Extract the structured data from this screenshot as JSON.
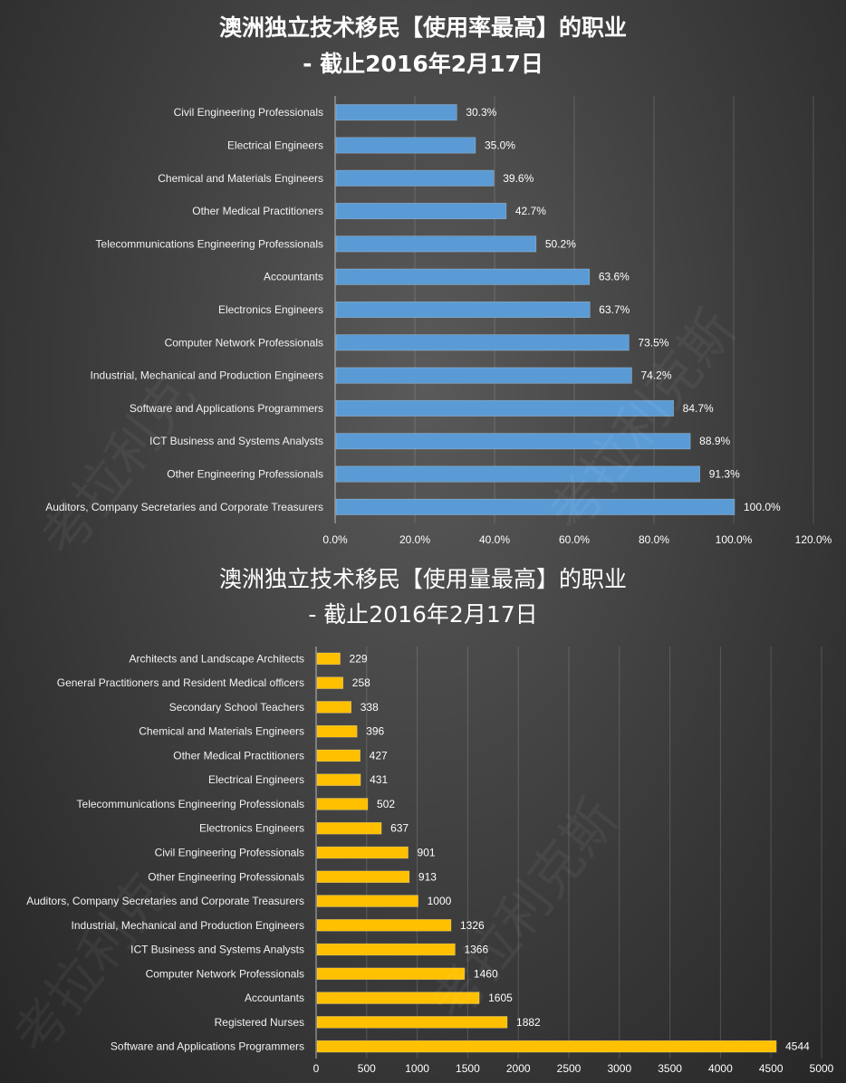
{
  "chart_data": [
    {
      "type": "bar",
      "orientation": "horizontal",
      "title": "澳洲独立技术移民【使用率最高】的职业",
      "subtitle": "- 截止2016年2月17日",
      "categories": [
        "Civil Engineering Professionals",
        "Electrical Engineers",
        "Chemical and Materials Engineers",
        "Other Medical Practitioners",
        "Telecommunications Engineering Professionals",
        "Accountants",
        "Electronics Engineers",
        "Computer Network Professionals",
        "Industrial, Mechanical and Production Engineers",
        "Software and Applications Programmers",
        "ICT Business and Systems Analysts",
        "Other Engineering Professionals",
        "Auditors, Company Secretaries and Corporate Treasurers"
      ],
      "values": [
        30.3,
        35.0,
        39.6,
        42.7,
        50.2,
        63.6,
        63.7,
        73.5,
        74.2,
        84.7,
        88.9,
        91.3,
        100.0
      ],
      "value_labels": [
        "30.3%",
        "35.0%",
        "39.6%",
        "42.7%",
        "50.2%",
        "63.6%",
        "63.7%",
        "73.5%",
        "74.2%",
        "84.7%",
        "88.9%",
        "91.3%",
        "100.0%"
      ],
      "xlim": [
        0,
        120
      ],
      "xticks": [
        "0.0%",
        "20.0%",
        "40.0%",
        "60.0%",
        "80.0%",
        "100.0%",
        "120.0%"
      ],
      "bar_color": "#5b9bd5",
      "grid": true
    },
    {
      "type": "bar",
      "orientation": "horizontal",
      "title": "澳洲独立技术移民【使用量最高】的职业",
      "subtitle": "- 截止2016年2月17日",
      "categories": [
        "Architects and Landscape Architects",
        "General Practitioners and Resident Medical officers",
        "Secondary School Teachers",
        "Chemical and Materials Engineers",
        "Other Medical Practitioners",
        "Electrical Engineers",
        "Telecommunications Engineering Professionals",
        "Electronics Engineers",
        "Civil Engineering Professionals",
        "Other Engineering Professionals",
        "Auditors, Company Secretaries and Corporate Treasurers",
        "Industrial, Mechanical and Production Engineers",
        "ICT Business and Systems Analysts",
        "Computer Network Professionals",
        "Accountants",
        "Registered Nurses",
        "Software and Applications Programmers"
      ],
      "values": [
        229,
        258,
        338,
        396,
        427,
        431,
        502,
        637,
        901,
        913,
        1000,
        1326,
        1366,
        1460,
        1605,
        1882,
        4544
      ],
      "value_labels": [
        "229",
        "258",
        "338",
        "396",
        "427",
        "431",
        "502",
        "637",
        "901",
        "913",
        "1000",
        "1326",
        "1366",
        "1460",
        "1605",
        "1882",
        "4544"
      ],
      "xlim": [
        0,
        5000
      ],
      "xticks": [
        "0",
        "500",
        "1000",
        "1500",
        "2000",
        "2500",
        "3000",
        "3500",
        "4000",
        "4500",
        "5000"
      ],
      "bar_color": "#ffc000",
      "grid": true
    }
  ]
}
